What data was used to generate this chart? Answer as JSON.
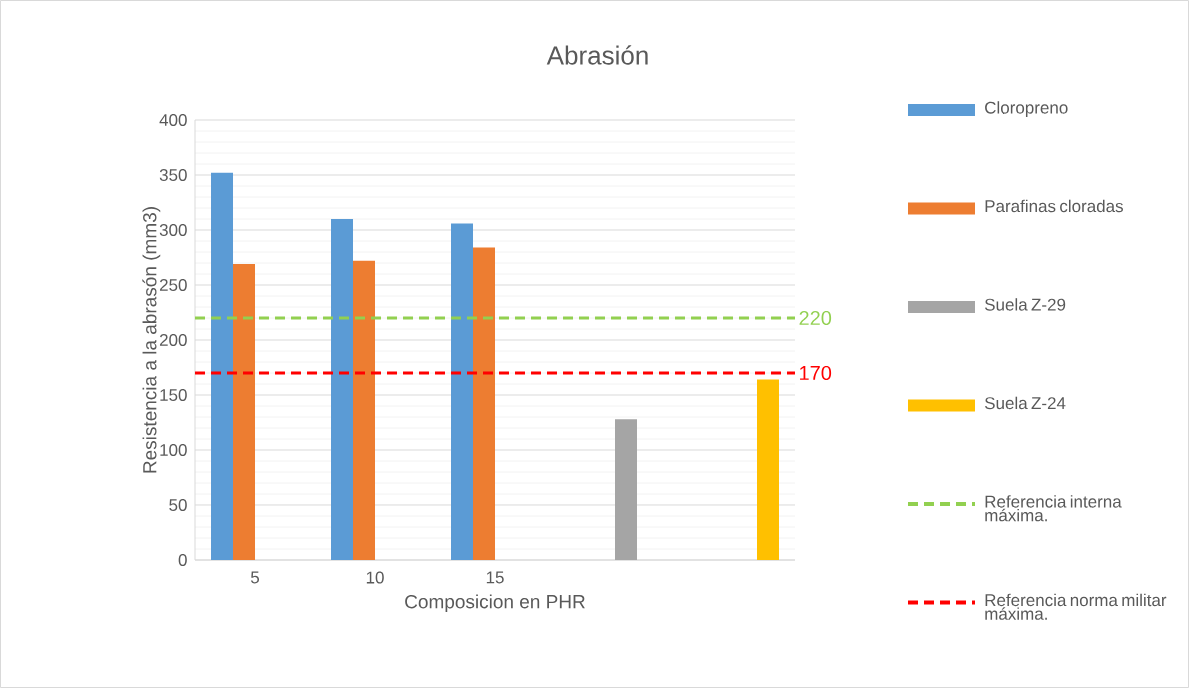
{
  "chart_data": {
    "type": "bar",
    "title": "Abrasión",
    "xlabel": "Composicion en PHR",
    "ylabel": "Resistencia a la abrasón (mm3)",
    "categories": [
      "5",
      "10",
      "15",
      null,
      null
    ],
    "series": [
      {
        "name": "Cloropreno",
        "color": "#5b9bd5",
        "values": [
          352,
          310,
          306,
          null,
          null
        ]
      },
      {
        "name": "Parafinas cloradas",
        "color": "#ed7d31",
        "values": [
          269,
          272,
          284,
          null,
          null
        ]
      },
      {
        "name": "Suela Z-29",
        "color": "#a5a5a5",
        "values": [
          null,
          null,
          null,
          128,
          null
        ]
      },
      {
        "name": "Suela Z-24",
        "color": "#ffc000",
        "values": [
          null,
          null,
          null,
          null,
          164
        ]
      }
    ],
    "ylim": [
      0,
      400
    ],
    "yticks": [
      0,
      50,
      100,
      150,
      200,
      250,
      300,
      350,
      400
    ],
    "grid": "y",
    "legend": "right",
    "ref_lines": [
      {
        "axis": "y",
        "value": 220,
        "label": "Referencia interna máxima.",
        "color": "#92d050",
        "line_style": "dashed"
      },
      {
        "axis": "y",
        "value": 170,
        "label": "Referencia norma militar máxima.",
        "color": "#ff0000",
        "line_style": "dashed"
      }
    ],
    "annotations": [
      "220",
      "170"
    ]
  }
}
